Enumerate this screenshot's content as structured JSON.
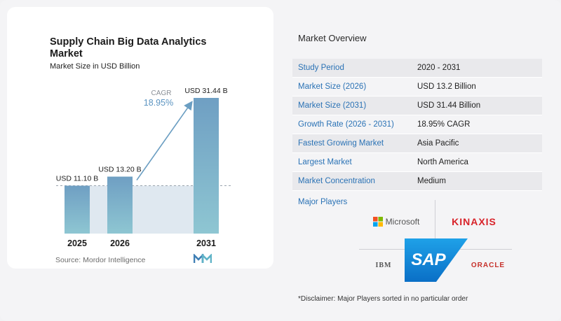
{
  "chart_data": {
    "type": "bar",
    "title": "Supply Chain Big Data Analytics Market",
    "subtitle": "Market Size in USD Billion",
    "categories": [
      "2025",
      "2026",
      "2031"
    ],
    "values": [
      11.1,
      13.2,
      31.44
    ],
    "value_labels": [
      "USD 11.10 B",
      "USD 13.20 B",
      "USD 31.44 B"
    ],
    "annotation": {
      "label": "CAGR",
      "value": "18.95%"
    },
    "colors": {
      "bar_top": "#6f9fc3",
      "bar_bottom": "#8ec6d2",
      "band": "#dfe8f0",
      "arrow": "#6b9ec2",
      "cagr": "#5b94c1"
    },
    "grid": false
  },
  "source": "Source: Mordor Intelligence",
  "overview": {
    "title": "Market Overview",
    "rows": [
      {
        "label": "Study Period",
        "value": "2020 - 2031"
      },
      {
        "label": "Market Size (2026)",
        "value": "USD 13.2 Billion"
      },
      {
        "label": "Market Size (2031)",
        "value": "USD 31.44 Billion"
      },
      {
        "label": "Growth Rate (2026 - 2031)",
        "value": "18.95% CAGR"
      },
      {
        "label": "Fastest Growing Market",
        "value": "Asia Pacific"
      },
      {
        "label": "Largest Market",
        "value": "North America"
      },
      {
        "label": "Market Concentration",
        "value": "Medium"
      }
    ]
  },
  "players": {
    "title": "Major Players",
    "names": [
      "Microsoft",
      "KINAXIS",
      "IBM",
      "SAP",
      "ORACLE"
    ],
    "disclaimer": "*Disclaimer: Major Players sorted in no particular order"
  }
}
